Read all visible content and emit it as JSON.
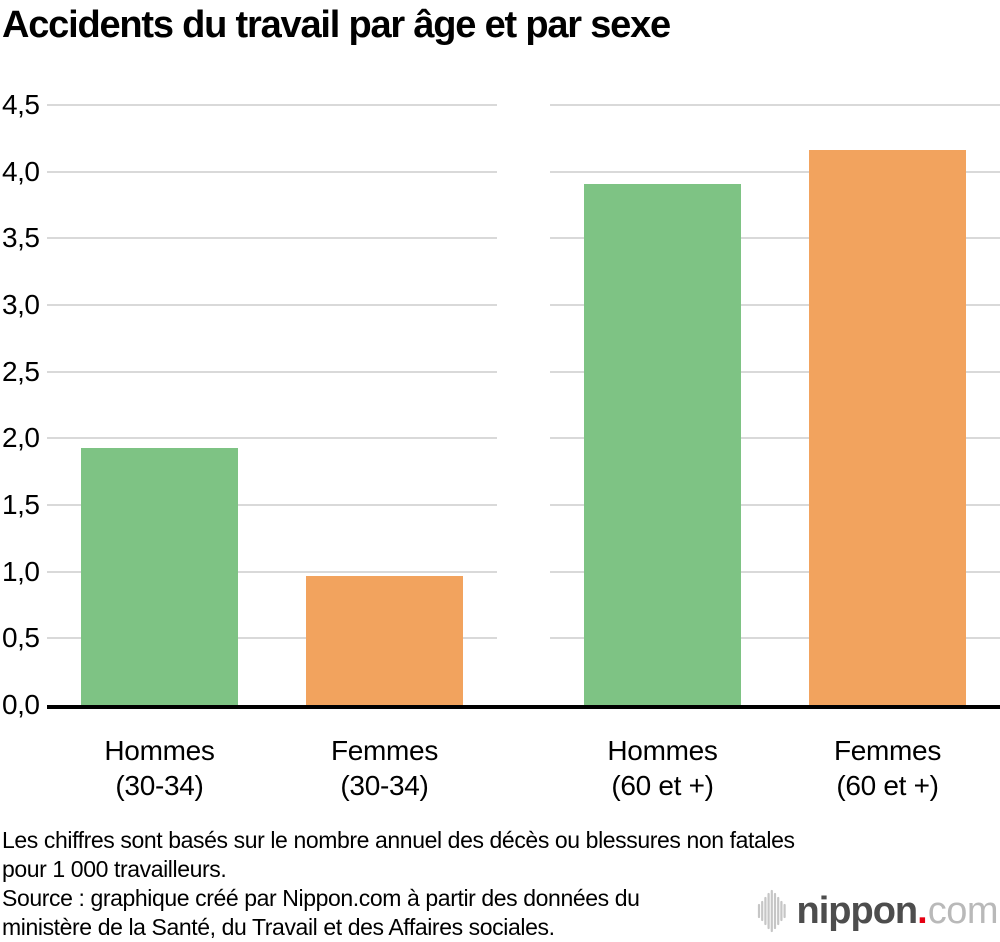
{
  "title": "Accidents du travail par âge et par sexe",
  "chart_data": {
    "type": "bar",
    "title": "Accidents du travail par âge et par sexe",
    "xlabel": "",
    "ylabel": "",
    "ylim": [
      0,
      4.5
    ],
    "grid": true,
    "legend": "none",
    "decimal_style": "french-comma",
    "ytick_values": [
      0,
      0.5,
      1,
      1.5,
      2,
      2.5,
      3,
      3.5,
      4,
      4.5
    ],
    "ytick_labels": [
      "0,0",
      "0,5",
      "1,0",
      "1,5",
      "2,0",
      "2,5",
      "3,0",
      "3,5",
      "4,0",
      "4,5"
    ],
    "categories": [
      "Hommes (30-34)",
      "Femmes (30-34)",
      "Hommes (60 et +)",
      "Femmes (60 et +)"
    ],
    "values": [
      1.93,
      0.97,
      3.91,
      4.16
    ],
    "panels": [
      {
        "bars": [
          {
            "id": "hommes-30-34",
            "label_line1": "Hommes",
            "label_line2": "(30-34)",
            "value": 1.93,
            "color": "#7ec384"
          },
          {
            "id": "femmes-30-34",
            "label_line1": "Femmes",
            "label_line2": "(30-34)",
            "value": 0.97,
            "color": "#f2a35e"
          }
        ]
      },
      {
        "bars": [
          {
            "id": "hommes-60-plus",
            "label_line1": "Hommes",
            "label_line2": "(60 et +)",
            "value": 3.91,
            "color": "#7ec384"
          },
          {
            "id": "femmes-60-plus",
            "label_line1": "Femmes",
            "label_line2": "(60 et +)",
            "value": 4.16,
            "color": "#f2a35e"
          }
        ]
      }
    ]
  },
  "colors": {
    "bar_green": "#7ec384",
    "bar_orange": "#f2a35e",
    "gridline": "#d9d9d9",
    "axis": "#000000",
    "logo_text_dark": "#4d4d4d",
    "logo_text_light": "#b9b9b9",
    "logo_red": "#e60012",
    "logo_icon_gray": "#c6c6c6"
  },
  "footnote": {
    "lines": [
      "Les chiffres sont basés sur le nombre annuel des décès ou blessures non fatales",
      "pour 1 000 travailleurs.",
      "Source : graphique créé par Nippon.com à partir des données du",
      "ministère de la Santé, du Travail et des Affaires sociales."
    ]
  },
  "logo": {
    "name": "nippon",
    "dot": ".",
    "tld": "com"
  }
}
